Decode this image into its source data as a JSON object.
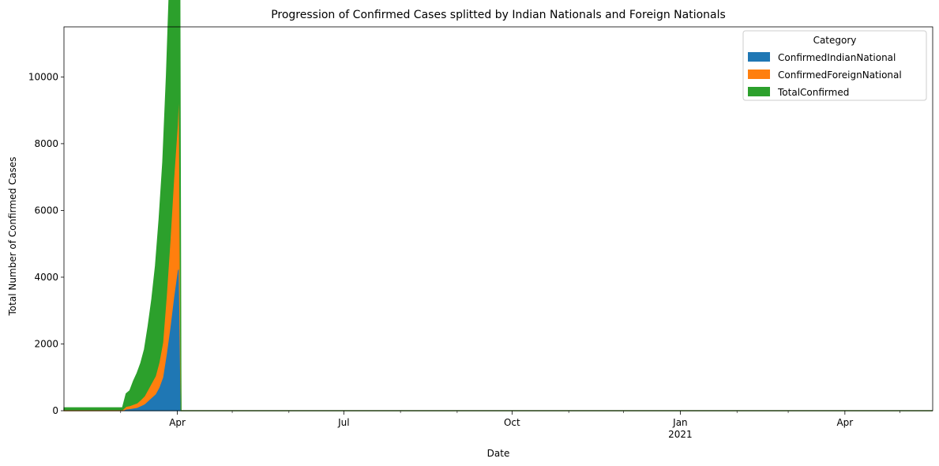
{
  "chart_data": {
    "type": "area",
    "stacked": true,
    "title": "Progression of Confirmed Cases splitted by Indian Nationals and Foreign Nationals",
    "xlabel": "Date",
    "ylabel": "Total Number of Confirmed Cases",
    "xlim": [
      "2020-01-30",
      "2021-05-19"
    ],
    "ylim": [
      0,
      11500
    ],
    "yticks": [
      0,
      2000,
      4000,
      6000,
      8000,
      10000
    ],
    "xticks": [
      {
        "date": "2020-04-01",
        "label": "Apr",
        "sub": ""
      },
      {
        "date": "2020-07-01",
        "label": "Jul",
        "sub": ""
      },
      {
        "date": "2020-10-01",
        "label": "Oct",
        "sub": ""
      },
      {
        "date": "2021-01-01",
        "label": "Jan",
        "sub": "2021"
      },
      {
        "date": "2021-04-01",
        "label": "Apr",
        "sub": ""
      }
    ],
    "minor_xticks": [
      "2020-03-01",
      "2020-05-01",
      "2020-06-01",
      "2020-08-01",
      "2020-09-01",
      "2020-11-01",
      "2020-12-01",
      "2021-02-01",
      "2021-03-01",
      "2021-05-01"
    ],
    "grid": false,
    "legend": {
      "title": "Category",
      "position": "top-right"
    },
    "series": [
      {
        "name": "ConfirmedIndianNational",
        "color": "#1f77b4",
        "points": [
          [
            "2020-01-30",
            0
          ],
          [
            "2020-03-01",
            0
          ],
          [
            "2020-03-02",
            0
          ],
          [
            "2020-03-04",
            50
          ],
          [
            "2020-03-06",
            60
          ],
          [
            "2020-03-08",
            80
          ],
          [
            "2020-03-10",
            100
          ],
          [
            "2020-03-12",
            150
          ],
          [
            "2020-03-14",
            200
          ],
          [
            "2020-03-16",
            300
          ],
          [
            "2020-03-18",
            400
          ],
          [
            "2020-03-20",
            500
          ],
          [
            "2020-03-22",
            700
          ],
          [
            "2020-03-24",
            1000
          ],
          [
            "2020-03-26",
            1700
          ],
          [
            "2020-03-28",
            2500
          ],
          [
            "2020-03-30",
            3400
          ],
          [
            "2020-04-01",
            4200
          ],
          [
            "2020-04-02",
            4300
          ],
          [
            "2020-04-03",
            0
          ],
          [
            "2021-05-19",
            0
          ]
        ]
      },
      {
        "name": "ConfirmedForeignNational",
        "color": "#ff7f0e",
        "points": [
          [
            "2020-01-30",
            30
          ],
          [
            "2020-03-01",
            30
          ],
          [
            "2020-03-02",
            30
          ],
          [
            "2020-03-04",
            80
          ],
          [
            "2020-03-06",
            90
          ],
          [
            "2020-03-08",
            110
          ],
          [
            "2020-03-10",
            130
          ],
          [
            "2020-03-12",
            180
          ],
          [
            "2020-03-14",
            240
          ],
          [
            "2020-03-16",
            340
          ],
          [
            "2020-03-18",
            440
          ],
          [
            "2020-03-20",
            540
          ],
          [
            "2020-03-22",
            750
          ],
          [
            "2020-03-24",
            1050
          ],
          [
            "2020-03-26",
            1750
          ],
          [
            "2020-03-28",
            2600
          ],
          [
            "2020-03-30",
            3550
          ],
          [
            "2020-04-01",
            4350
          ],
          [
            "2020-04-02",
            5450
          ],
          [
            "2020-04-03",
            0
          ],
          [
            "2021-05-19",
            0
          ]
        ]
      },
      {
        "name": "TotalConfirmed",
        "color": "#2ca02c",
        "points": [
          [
            "2020-01-30",
            60
          ],
          [
            "2020-03-01",
            60
          ],
          [
            "2020-03-02",
            60
          ],
          [
            "2020-03-04",
            380
          ],
          [
            "2020-03-06",
            450
          ],
          [
            "2020-03-08",
            700
          ],
          [
            "2020-03-10",
            900
          ],
          [
            "2020-03-12",
            1100
          ],
          [
            "2020-03-14",
            1400
          ],
          [
            "2020-03-16",
            1900
          ],
          [
            "2020-03-18",
            2500
          ],
          [
            "2020-03-20",
            3300
          ],
          [
            "2020-03-22",
            4300
          ],
          [
            "2020-03-24",
            5400
          ],
          [
            "2020-03-26",
            6600
          ],
          [
            "2020-03-28",
            8200
          ],
          [
            "2020-03-30",
            9000
          ],
          [
            "2020-04-01",
            9300
          ],
          [
            "2020-04-02",
            10900
          ],
          [
            "2020-04-03",
            0
          ],
          [
            "2021-05-19",
            0
          ]
        ]
      }
    ]
  }
}
